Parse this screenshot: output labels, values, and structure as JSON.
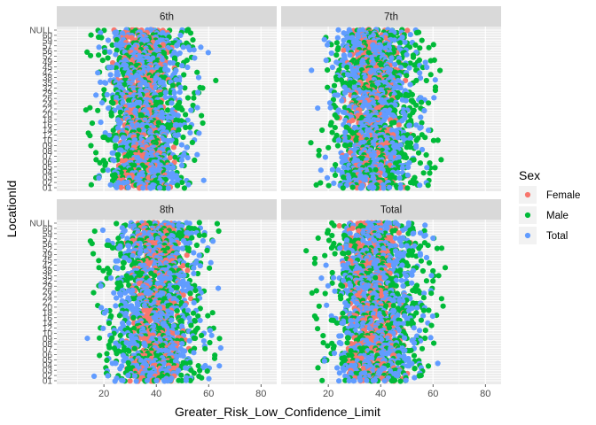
{
  "chart_data": {
    "type": "scatter",
    "facets": [
      "6th",
      "7th",
      "8th",
      "Total"
    ],
    "xlabel": "Greater_Risk_Low_Confidence_Limit",
    "ylabel": "LocationId",
    "xlim": [
      2,
      86
    ],
    "x_ticks": [
      20,
      40,
      60,
      80
    ],
    "y_categories_visible": [
      "NULL",
      "60",
      "59",
      "57",
      "56",
      "52",
      "49",
      "45",
      "42",
      "38",
      "35",
      "32",
      "29",
      "26",
      "24",
      "22",
      "20",
      "18",
      "16",
      "14",
      "12",
      "10",
      "09",
      "08",
      "07",
      "06",
      "05",
      "04",
      "03",
      "02",
      "01"
    ],
    "y_category_count": 31,
    "legend": {
      "title": "Sex",
      "position": "right",
      "entries": [
        {
          "label": "Female",
          "color": "#F8766D"
        },
        {
          "label": "Male",
          "color": "#00BA38"
        },
        {
          "label": "Total",
          "color": "#619CFF"
        }
      ]
    },
    "grid": true,
    "panel_background": "#EBEBEB",
    "strip_background": "#D9D9D9",
    "series_ranges": {
      "6th": {
        "Female": [
          20,
          50
        ],
        "Male": [
          8,
          65
        ],
        "Total": [
          12,
          62
        ]
      },
      "7th": {
        "Female": [
          22,
          52
        ],
        "Male": [
          10,
          70
        ],
        "Total": [
          12,
          64
        ]
      },
      "8th": {
        "Female": [
          25,
          55
        ],
        "Male": [
          8,
          72
        ],
        "Total": [
          12,
          68
        ]
      },
      "Total": {
        "Female": [
          22,
          52
        ],
        "Male": [
          8,
          72
        ],
        "Total": [
          12,
          66
        ]
      }
    }
  }
}
